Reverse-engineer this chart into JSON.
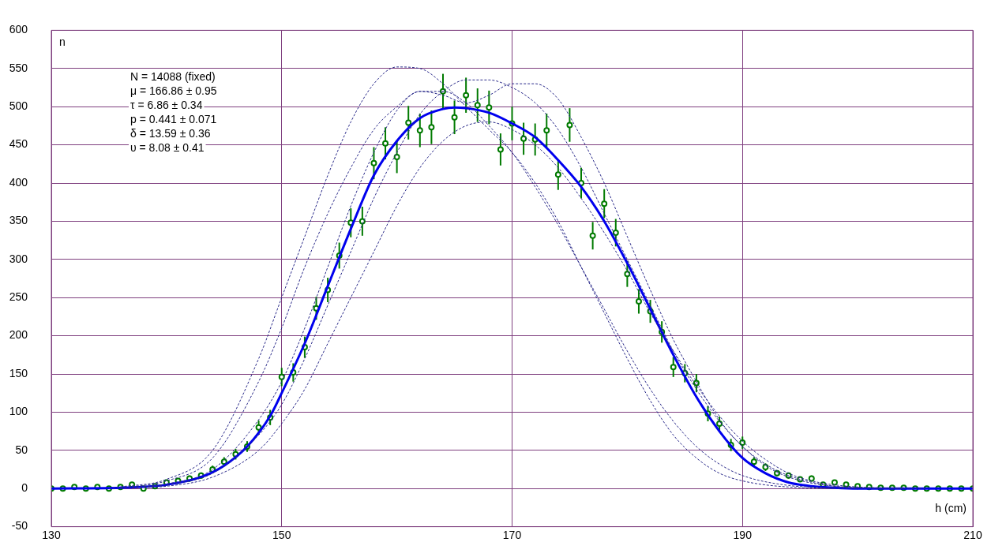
{
  "chart_data": {
    "type": "scatter",
    "xlabel": "h (cm)",
    "ylabel": "n",
    "xlim": [
      130,
      210
    ],
    "xticks": [
      130,
      150,
      170,
      190,
      210
    ],
    "ylim": [
      -50,
      600
    ],
    "yticks": [
      -50,
      0,
      50,
      100,
      150,
      200,
      250,
      300,
      350,
      400,
      450,
      500,
      550,
      600
    ],
    "grid": true,
    "legend": false,
    "annotations": [
      "N = 14088 (fixed)",
      "μ = 166.86 ± 0.95",
      "τ = 6.86 ± 0.34",
      "p = 0.441 ± 0.071",
      "δ = 13.59 ± 0.36",
      "υ = 8.08 ± 0.41"
    ],
    "series": [
      {
        "type": "line",
        "line_style": "dashed",
        "marker": "none",
        "color": "#2a2a8a",
        "x": [
          136,
          140,
          144,
          148,
          150,
          152,
          154,
          156,
          158,
          160,
          162,
          164,
          166,
          168,
          170,
          172,
          174,
          176,
          178,
          180,
          182,
          184,
          186,
          188,
          190,
          194,
          200
        ],
        "values": [
          2,
          12,
          50,
          170,
          250,
          330,
          410,
          480,
          530,
          552,
          550,
          530,
          500,
          470,
          440,
          400,
          350,
          290,
          230,
          170,
          115,
          70,
          40,
          20,
          10,
          2,
          0
        ]
      },
      {
        "type": "line",
        "line_style": "dashed",
        "marker": "none",
        "color": "#2a2a8a",
        "x": [
          136,
          140,
          144,
          148,
          150,
          152,
          154,
          156,
          158,
          160,
          162,
          164,
          166,
          168,
          170,
          172,
          174,
          176,
          178,
          180,
          182,
          184,
          186,
          188,
          190,
          192,
          194,
          198,
          204
        ],
        "values": [
          1,
          6,
          25,
          90,
          140,
          210,
          290,
          370,
          440,
          495,
          520,
          515,
          505,
          515,
          530,
          530,
          510,
          460,
          400,
          330,
          260,
          195,
          140,
          90,
          55,
          30,
          15,
          3,
          0
        ]
      },
      {
        "type": "line",
        "line_style": "dashed",
        "marker": "none",
        "color": "#2a2a8a",
        "x": [
          137,
          140,
          144,
          148,
          150,
          152,
          154,
          156,
          158,
          160,
          162,
          164,
          166,
          168,
          170,
          172,
          174,
          176,
          178,
          180,
          182,
          184,
          186,
          188,
          190,
          192,
          194,
          196,
          200,
          206
        ],
        "values": [
          1,
          3,
          15,
          50,
          85,
          130,
          190,
          250,
          310,
          370,
          420,
          455,
          475,
          480,
          470,
          450,
          420,
          380,
          335,
          285,
          230,
          180,
          135,
          95,
          62,
          38,
          20,
          10,
          2,
          0
        ]
      },
      {
        "type": "line",
        "line_style": "dashed",
        "marker": "none",
        "color": "#2a2a8a",
        "x": [
          135,
          140,
          144,
          148,
          150,
          152,
          154,
          156,
          158,
          160,
          162,
          164,
          166,
          168,
          170,
          172,
          174,
          176,
          178,
          180,
          182,
          184,
          186,
          188,
          190,
          194,
          198
        ],
        "values": [
          0,
          10,
          40,
          140,
          210,
          290,
          360,
          420,
          470,
          500,
          520,
          520,
          505,
          475,
          440,
          395,
          345,
          290,
          235,
          180,
          130,
          88,
          55,
          32,
          17,
          4,
          1
        ]
      },
      {
        "type": "line",
        "line_style": "dashed",
        "marker": "none",
        "color": "#2a2a8a",
        "x": [
          138,
          140,
          144,
          148,
          150,
          152,
          154,
          156,
          158,
          160,
          162,
          164,
          166,
          168,
          170,
          172,
          174,
          176,
          178,
          180,
          182,
          184,
          186,
          188,
          190,
          192,
          194,
          198,
          202
        ],
        "values": [
          2,
          5,
          20,
          70,
          110,
          170,
          240,
          310,
          380,
          440,
          490,
          520,
          535,
          535,
          525,
          505,
          470,
          420,
          360,
          300,
          240,
          180,
          130,
          88,
          55,
          32,
          17,
          3,
          0
        ]
      },
      {
        "type": "line",
        "line_style": "solid",
        "marker": "none",
        "color": "#0000ee",
        "x": [
          130,
          136,
          140,
          143,
          145,
          147,
          149,
          150,
          152,
          154,
          156,
          158,
          160,
          162,
          164,
          165,
          166,
          168,
          170,
          172,
          174,
          176,
          178,
          180,
          182,
          184,
          186,
          188,
          190,
          192,
          194,
          196,
          198,
          200,
          210
        ],
        "values": [
          0,
          1,
          5,
          15,
          30,
          55,
          95,
          125,
          190,
          265,
          340,
          410,
          455,
          485,
          497,
          499,
          498,
          492,
          478,
          460,
          430,
          395,
          350,
          295,
          235,
          175,
          120,
          75,
          40,
          20,
          8,
          3,
          1,
          0,
          0
        ]
      },
      {
        "marker": "circle",
        "color": "#007a00",
        "x": [
          130,
          131,
          132,
          133,
          134,
          135,
          136,
          137,
          138,
          139,
          140,
          141,
          142,
          143,
          144,
          145,
          146,
          147,
          148,
          149,
          150,
          151,
          152,
          153,
          154,
          155,
          156,
          157,
          158,
          159,
          160,
          161,
          162,
          163,
          164,
          165,
          166,
          167,
          168,
          169,
          170,
          171,
          172,
          173,
          174,
          175,
          176,
          177,
          178,
          179,
          180,
          181,
          182,
          183,
          184,
          185,
          186,
          187,
          188,
          189,
          190,
          191,
          192,
          193,
          194,
          195,
          196,
          197,
          198,
          199,
          200,
          201,
          202,
          203,
          204,
          205,
          206,
          207,
          208,
          209,
          210
        ],
        "values": [
          0,
          0,
          2,
          0,
          2,
          0,
          2,
          5,
          0,
          3,
          8,
          10,
          13,
          17,
          25,
          35,
          45,
          55,
          80,
          93,
          146,
          152,
          185,
          236,
          260,
          305,
          348,
          350,
          426,
          452,
          434,
          479,
          469,
          473,
          520,
          486,
          515,
          502,
          499,
          444,
          478,
          458,
          457,
          469,
          411,
          476,
          400,
          331,
          373,
          335,
          281,
          245,
          232,
          205,
          159,
          151,
          138,
          98,
          85,
          57,
          60,
          35,
          28,
          20,
          17,
          12,
          13,
          5,
          8,
          5,
          3,
          2,
          1,
          1,
          1,
          0,
          0,
          0,
          0,
          0,
          0
        ],
        "errors": [
          null,
          null,
          1,
          null,
          1,
          null,
          1,
          2,
          null,
          2,
          3,
          3,
          4,
          4,
          5,
          6,
          7,
          7,
          9,
          10,
          12,
          12,
          14,
          15,
          16,
          17,
          19,
          19,
          21,
          21,
          21,
          22,
          22,
          22,
          23,
          22,
          23,
          22,
          22,
          21,
          22,
          21,
          21,
          22,
          20,
          22,
          20,
          18,
          19,
          18,
          17,
          16,
          15,
          14,
          13,
          12,
          12,
          10,
          9,
          8,
          8,
          6,
          5,
          4,
          4,
          3,
          4,
          2,
          3,
          2,
          2,
          1,
          1,
          1,
          1,
          null,
          null,
          null,
          null,
          null,
          null
        ]
      }
    ]
  }
}
